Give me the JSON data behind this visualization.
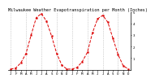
{
  "title": "Milwaukee Weather Evapotranspiration per Month (Inches)",
  "line_color": "#dd0000",
  "bg_color": "#ffffff",
  "grid_color": "#999999",
  "values": [
    0.05,
    0.15,
    0.6,
    1.4,
    3.0,
    4.5,
    4.85,
    4.2,
    2.9,
    1.4,
    0.4,
    0.05,
    0.05,
    0.2,
    0.7,
    1.5,
    3.2,
    4.4,
    4.7,
    4.1,
    2.7,
    1.3,
    0.35,
    0.05
  ],
  "ylim": [
    0,
    5
  ],
  "ytick_vals": [
    1,
    2,
    3,
    4,
    5
  ],
  "xlabel_fontsize": 3.0,
  "ylabel_fontsize": 3.0,
  "title_fontsize": 3.8,
  "line_width": 0.7,
  "marker_size": 1.2,
  "vline_every": 3,
  "vline_color": "#aaaaaa",
  "months_2yr": [
    "J",
    "F",
    "M",
    "A",
    "M",
    "J",
    "J",
    "A",
    "S",
    "O",
    "N",
    "D",
    "J",
    "F",
    "M",
    "A",
    "M",
    "J",
    "J",
    "A",
    "S",
    "O",
    "N",
    "D"
  ]
}
